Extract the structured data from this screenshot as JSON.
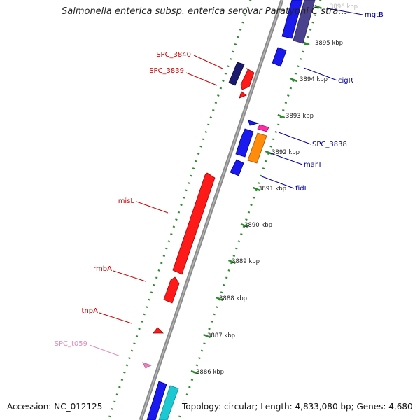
{
  "title": "Salmonella enterica subsp. enterica serovar Paratyphi C stra...",
  "footer": {
    "accession": "Accession: NC_012125",
    "summary": "Topology: circular; Length: 4,833,080 bp; Genes: 4,680"
  },
  "colors": {
    "backbone": "#8a8a8a",
    "ticks": "#2e8b2e",
    "label_red": "#cc0000",
    "label_blue": "#000099",
    "label_pink": "#e58ab8"
  },
  "kbp_labels": [
    "3886 kbp",
    "3887 kbp",
    "3888 kbp",
    "3889 kbp",
    "3890 kbp",
    "3891 kbp",
    "3892 kbp",
    "3893 kbp",
    "3894 kbp",
    "3895 kbp",
    "3896 kbp"
  ],
  "gene_labels": {
    "spc3840": "SPC_3840",
    "spc3839": "SPC_3839",
    "misl": "misL",
    "rmba": "rmbA",
    "tnpa": "tnpA",
    "spct059": "SPC_t059",
    "mgtb": "mgtB",
    "cigr": "cigR",
    "spc3838": "SPC_3838",
    "mart": "marT",
    "fidl": "fidL"
  }
}
